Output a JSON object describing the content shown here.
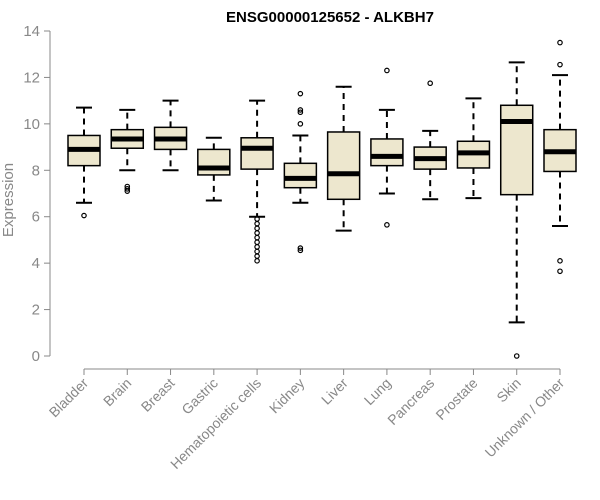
{
  "chart_data": {
    "type": "boxplot",
    "title": "ENSG00000125652 - ALKBH7",
    "xlabel": "",
    "ylabel": "Expression",
    "ylim": [
      0,
      14
    ],
    "yticks": [
      0,
      2,
      4,
      6,
      8,
      10,
      12,
      14
    ],
    "box_fill": "#ede7ce",
    "categories": [
      "Bladder",
      "Brain",
      "Breast",
      "Gastric",
      "Hematopoietic cells",
      "Kidney",
      "Liver",
      "Lung",
      "Pancreas",
      "Prostate",
      "Skin",
      "Unknown / Other"
    ],
    "boxes": [
      {
        "category": "Bladder",
        "whisker_low": 6.6,
        "q1": 8.2,
        "median": 8.9,
        "q3": 9.5,
        "whisker_high": 10.7,
        "outliers": [
          6.05
        ]
      },
      {
        "category": "Brain",
        "whisker_low": 8.0,
        "q1": 8.95,
        "median": 9.35,
        "q3": 9.75,
        "whisker_high": 10.6,
        "outliers": [
          7.1,
          7.2,
          7.3
        ]
      },
      {
        "category": "Breast",
        "whisker_low": 8.0,
        "q1": 8.9,
        "median": 9.35,
        "q3": 9.85,
        "whisker_high": 11.0,
        "outliers": []
      },
      {
        "category": "Gastric",
        "whisker_low": 6.7,
        "q1": 7.8,
        "median": 8.1,
        "q3": 8.9,
        "whisker_high": 9.4,
        "outliers": []
      },
      {
        "category": "Hematopoietic cells",
        "whisker_low": 6.0,
        "q1": 8.05,
        "median": 8.95,
        "q3": 9.4,
        "whisker_high": 11.0,
        "outliers": [
          5.9,
          5.7,
          5.5,
          5.3,
          5.1,
          4.9,
          4.7,
          4.5,
          4.3,
          4.1
        ]
      },
      {
        "category": "Kidney",
        "whisker_low": 6.6,
        "q1": 7.25,
        "median": 7.65,
        "q3": 8.3,
        "whisker_high": 9.5,
        "outliers": [
          10.0,
          10.5,
          10.6,
          11.3,
          4.55,
          4.65
        ]
      },
      {
        "category": "Liver",
        "whisker_low": 5.4,
        "q1": 6.75,
        "median": 7.85,
        "q3": 9.65,
        "whisker_high": 11.6,
        "outliers": []
      },
      {
        "category": "Lung",
        "whisker_low": 7.0,
        "q1": 8.2,
        "median": 8.6,
        "q3": 9.35,
        "whisker_high": 10.6,
        "outliers": [
          12.3,
          5.65
        ]
      },
      {
        "category": "Pancreas",
        "whisker_low": 6.75,
        "q1": 8.05,
        "median": 8.5,
        "q3": 9.0,
        "whisker_high": 9.7,
        "outliers": [
          11.75
        ]
      },
      {
        "category": "Prostate",
        "whisker_low": 6.8,
        "q1": 8.1,
        "median": 8.75,
        "q3": 9.25,
        "whisker_high": 11.1,
        "outliers": []
      },
      {
        "category": "Skin",
        "whisker_low": 1.45,
        "q1": 6.95,
        "median": 10.1,
        "q3": 10.8,
        "whisker_high": 12.65,
        "outliers": [
          0.0
        ]
      },
      {
        "category": "Unknown / Other",
        "whisker_low": 5.6,
        "q1": 7.95,
        "median": 8.8,
        "q3": 9.75,
        "whisker_high": 12.1,
        "outliers": [
          13.5,
          12.55,
          4.1,
          3.65
        ]
      }
    ]
  }
}
